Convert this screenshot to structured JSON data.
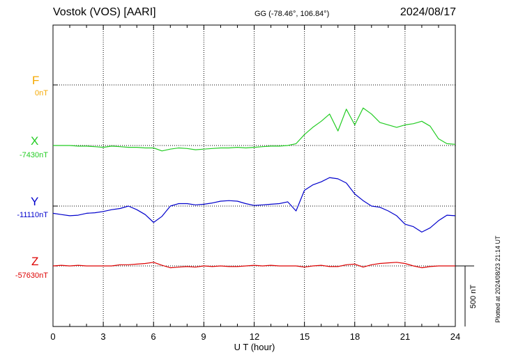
{
  "header": {
    "station": "Vostok (VOS)  [AARI]",
    "coords": "GG (-78.46°, 106.84°)",
    "date": "2024/08/17"
  },
  "components": [
    {
      "key": "F",
      "letter": "F",
      "baseline_label": "0nT",
      "color": "#f5a800"
    },
    {
      "key": "X",
      "letter": "X",
      "baseline_label": "-7430nT",
      "color": "#22cc22"
    },
    {
      "key": "Y",
      "letter": "Y",
      "baseline_label": "-11110nT",
      "color": "#0000cc"
    },
    {
      "key": "Z",
      "letter": "Z",
      "baseline_label": "-57630nT",
      "color": "#dd0000"
    }
  ],
  "xaxis": {
    "label": "U T (hour)",
    "ticks": [
      "0",
      "3",
      "6",
      "9",
      "12",
      "15",
      "18",
      "21",
      "24"
    ]
  },
  "scale_bar": {
    "label": "500 nT",
    "value_nT": 500
  },
  "plotted_note": "Plotted at 2024/08/23 21:14 UT",
  "chart_data": {
    "type": "line",
    "title": "Vostok (VOS)  [AARI]",
    "xlabel": "U T (hour)",
    "xlim": [
      0,
      24
    ],
    "x": [
      0,
      0.5,
      1,
      1.5,
      2,
      2.5,
      3,
      3.5,
      4,
      4.5,
      5,
      5.5,
      6,
      6.5,
      7,
      7.5,
      8,
      8.5,
      9,
      9.5,
      10,
      10.5,
      11,
      11.5,
      12,
      12.5,
      13,
      13.5,
      14,
      14.5,
      15,
      15.5,
      16,
      16.5,
      17,
      17.5,
      18,
      18.5,
      19,
      19.5,
      20,
      20.5,
      21,
      21.5,
      22,
      22.5,
      23,
      23.5,
      24
    ],
    "series": [
      {
        "name": "X",
        "baseline_nT": -7430,
        "values": [
          0,
          0,
          0,
          -5,
          -5,
          -10,
          -15,
          -5,
          -10,
          -15,
          -15,
          -20,
          -20,
          -45,
          -30,
          -20,
          -25,
          -35,
          -30,
          -25,
          -20,
          -20,
          -15,
          -20,
          -15,
          -10,
          -5,
          -5,
          0,
          15,
          90,
          150,
          200,
          260,
          120,
          300,
          170,
          310,
          260,
          190,
          170,
          150,
          170,
          180,
          200,
          160,
          55,
          15,
          10
        ]
      },
      {
        "name": "Y",
        "baseline_nT": -11110,
        "values": [
          -60,
          -70,
          -80,
          -75,
          -60,
          -55,
          -45,
          -30,
          -20,
          0,
          -30,
          -70,
          -135,
          -85,
          0,
          20,
          20,
          10,
          15,
          25,
          40,
          45,
          40,
          20,
          5,
          10,
          15,
          20,
          35,
          -40,
          130,
          175,
          200,
          235,
          225,
          190,
          100,
          45,
          0,
          -10,
          -40,
          -80,
          -150,
          -170,
          -215,
          -180,
          -120,
          -75,
          -80
        ]
      },
      {
        "name": "Z",
        "baseline_nT": -57630,
        "values": [
          0,
          5,
          0,
          5,
          0,
          0,
          0,
          0,
          10,
          10,
          15,
          20,
          30,
          5,
          -15,
          -10,
          -5,
          -10,
          0,
          -5,
          0,
          -5,
          -5,
          0,
          5,
          0,
          5,
          0,
          0,
          0,
          -10,
          0,
          5,
          -5,
          -5,
          10,
          15,
          -10,
          10,
          20,
          25,
          30,
          20,
          0,
          -15,
          -5,
          0,
          0,
          0
        ]
      }
    ]
  }
}
